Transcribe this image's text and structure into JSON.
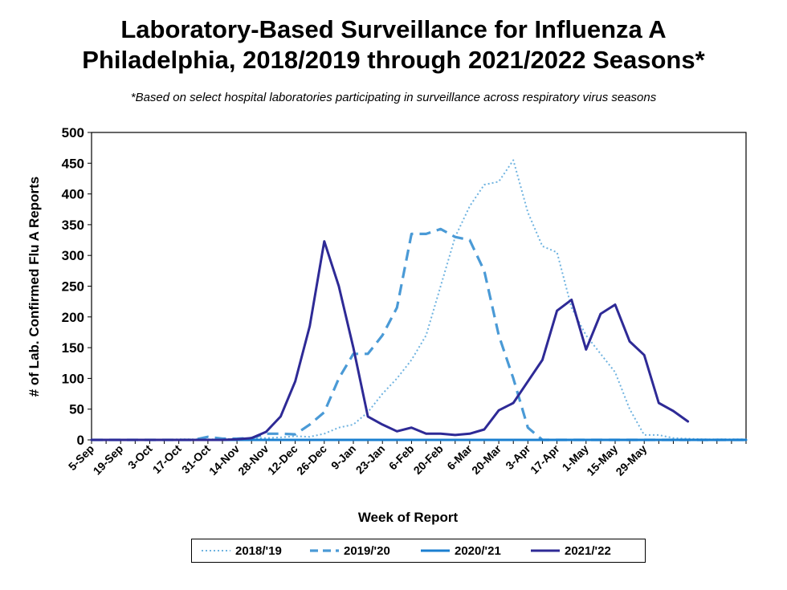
{
  "chart_data": {
    "type": "line",
    "title": "Laboratory-Based Surveillance for Influenza A",
    "title_line2": "Philadelphia, 2018/2019 through 2021/2022 Seasons*",
    "subtitle": "*Based on select hospital laboratories participating in surveillance across respiratory virus seasons",
    "xlabel": "Week of Report",
    "ylabel": "# of Lab. Confirmed Flu A Reports",
    "ylim": [
      0,
      500
    ],
    "yticks": [
      0,
      50,
      100,
      150,
      200,
      250,
      300,
      350,
      400,
      450,
      500
    ],
    "x_tick_labels": [
      "5-Sep",
      "19-Sep",
      "3-Oct",
      "17-Oct",
      "31-Oct",
      "14-Nov",
      "28-Nov",
      "12-Dec",
      "26-Dec",
      "9-Jan",
      "23-Jan",
      "6-Feb",
      "20-Feb",
      "6-Mar",
      "20-Mar",
      "3-Apr",
      "17-Apr",
      "1-May",
      "15-May",
      "29-May"
    ],
    "grid": false,
    "legend_position": "bottom",
    "series": [
      {
        "name": "2018/'19",
        "color": "#6fb3e0",
        "style": "dotted",
        "values": [
          0,
          0,
          0,
          0,
          0,
          0,
          1,
          1,
          1,
          1,
          2,
          3,
          3,
          4,
          6,
          5,
          10,
          20,
          25,
          45,
          75,
          100,
          130,
          170,
          250,
          330,
          380,
          415,
          420,
          455,
          370,
          315,
          305,
          215,
          170,
          140,
          110,
          50,
          8,
          8,
          3,
          2,
          1,
          1,
          1,
          1
        ]
      },
      {
        "name": "2019/'20",
        "color": "#4a9ad6",
        "style": "dashed",
        "values": [
          0,
          0,
          0,
          0,
          0,
          0,
          0,
          0,
          5,
          2,
          2,
          3,
          10,
          10,
          9,
          25,
          45,
          100,
          140,
          140,
          170,
          215,
          335,
          335,
          343,
          330,
          325,
          275,
          170,
          100,
          20,
          0,
          0,
          0,
          0,
          0,
          0,
          0,
          0,
          0,
          0,
          0,
          0,
          0,
          0,
          0
        ]
      },
      {
        "name": "2020/'21",
        "color": "#1a7fd0",
        "style": "solid",
        "values": [
          0,
          0,
          0,
          0,
          0,
          0,
          0,
          0,
          0,
          0,
          0,
          0,
          0,
          0,
          0,
          0,
          0,
          0,
          0,
          0,
          0,
          0,
          0,
          0,
          0,
          0,
          0,
          0,
          0,
          0,
          0,
          0,
          0,
          0,
          0,
          0,
          0,
          0,
          0,
          0,
          0,
          0,
          0,
          0,
          0,
          0
        ]
      },
      {
        "name": "2021/'22",
        "color": "#2e2a96",
        "style": "solid",
        "values": [
          0,
          0,
          0,
          0,
          0,
          0,
          0,
          0,
          0,
          0,
          1,
          3,
          13,
          38,
          95,
          185,
          323,
          250,
          150,
          38,
          25,
          14,
          20,
          10,
          10,
          8,
          10,
          17,
          48,
          60,
          95,
          130,
          210,
          228,
          147,
          205,
          220,
          160,
          138,
          60,
          47,
          30
        ]
      }
    ]
  }
}
